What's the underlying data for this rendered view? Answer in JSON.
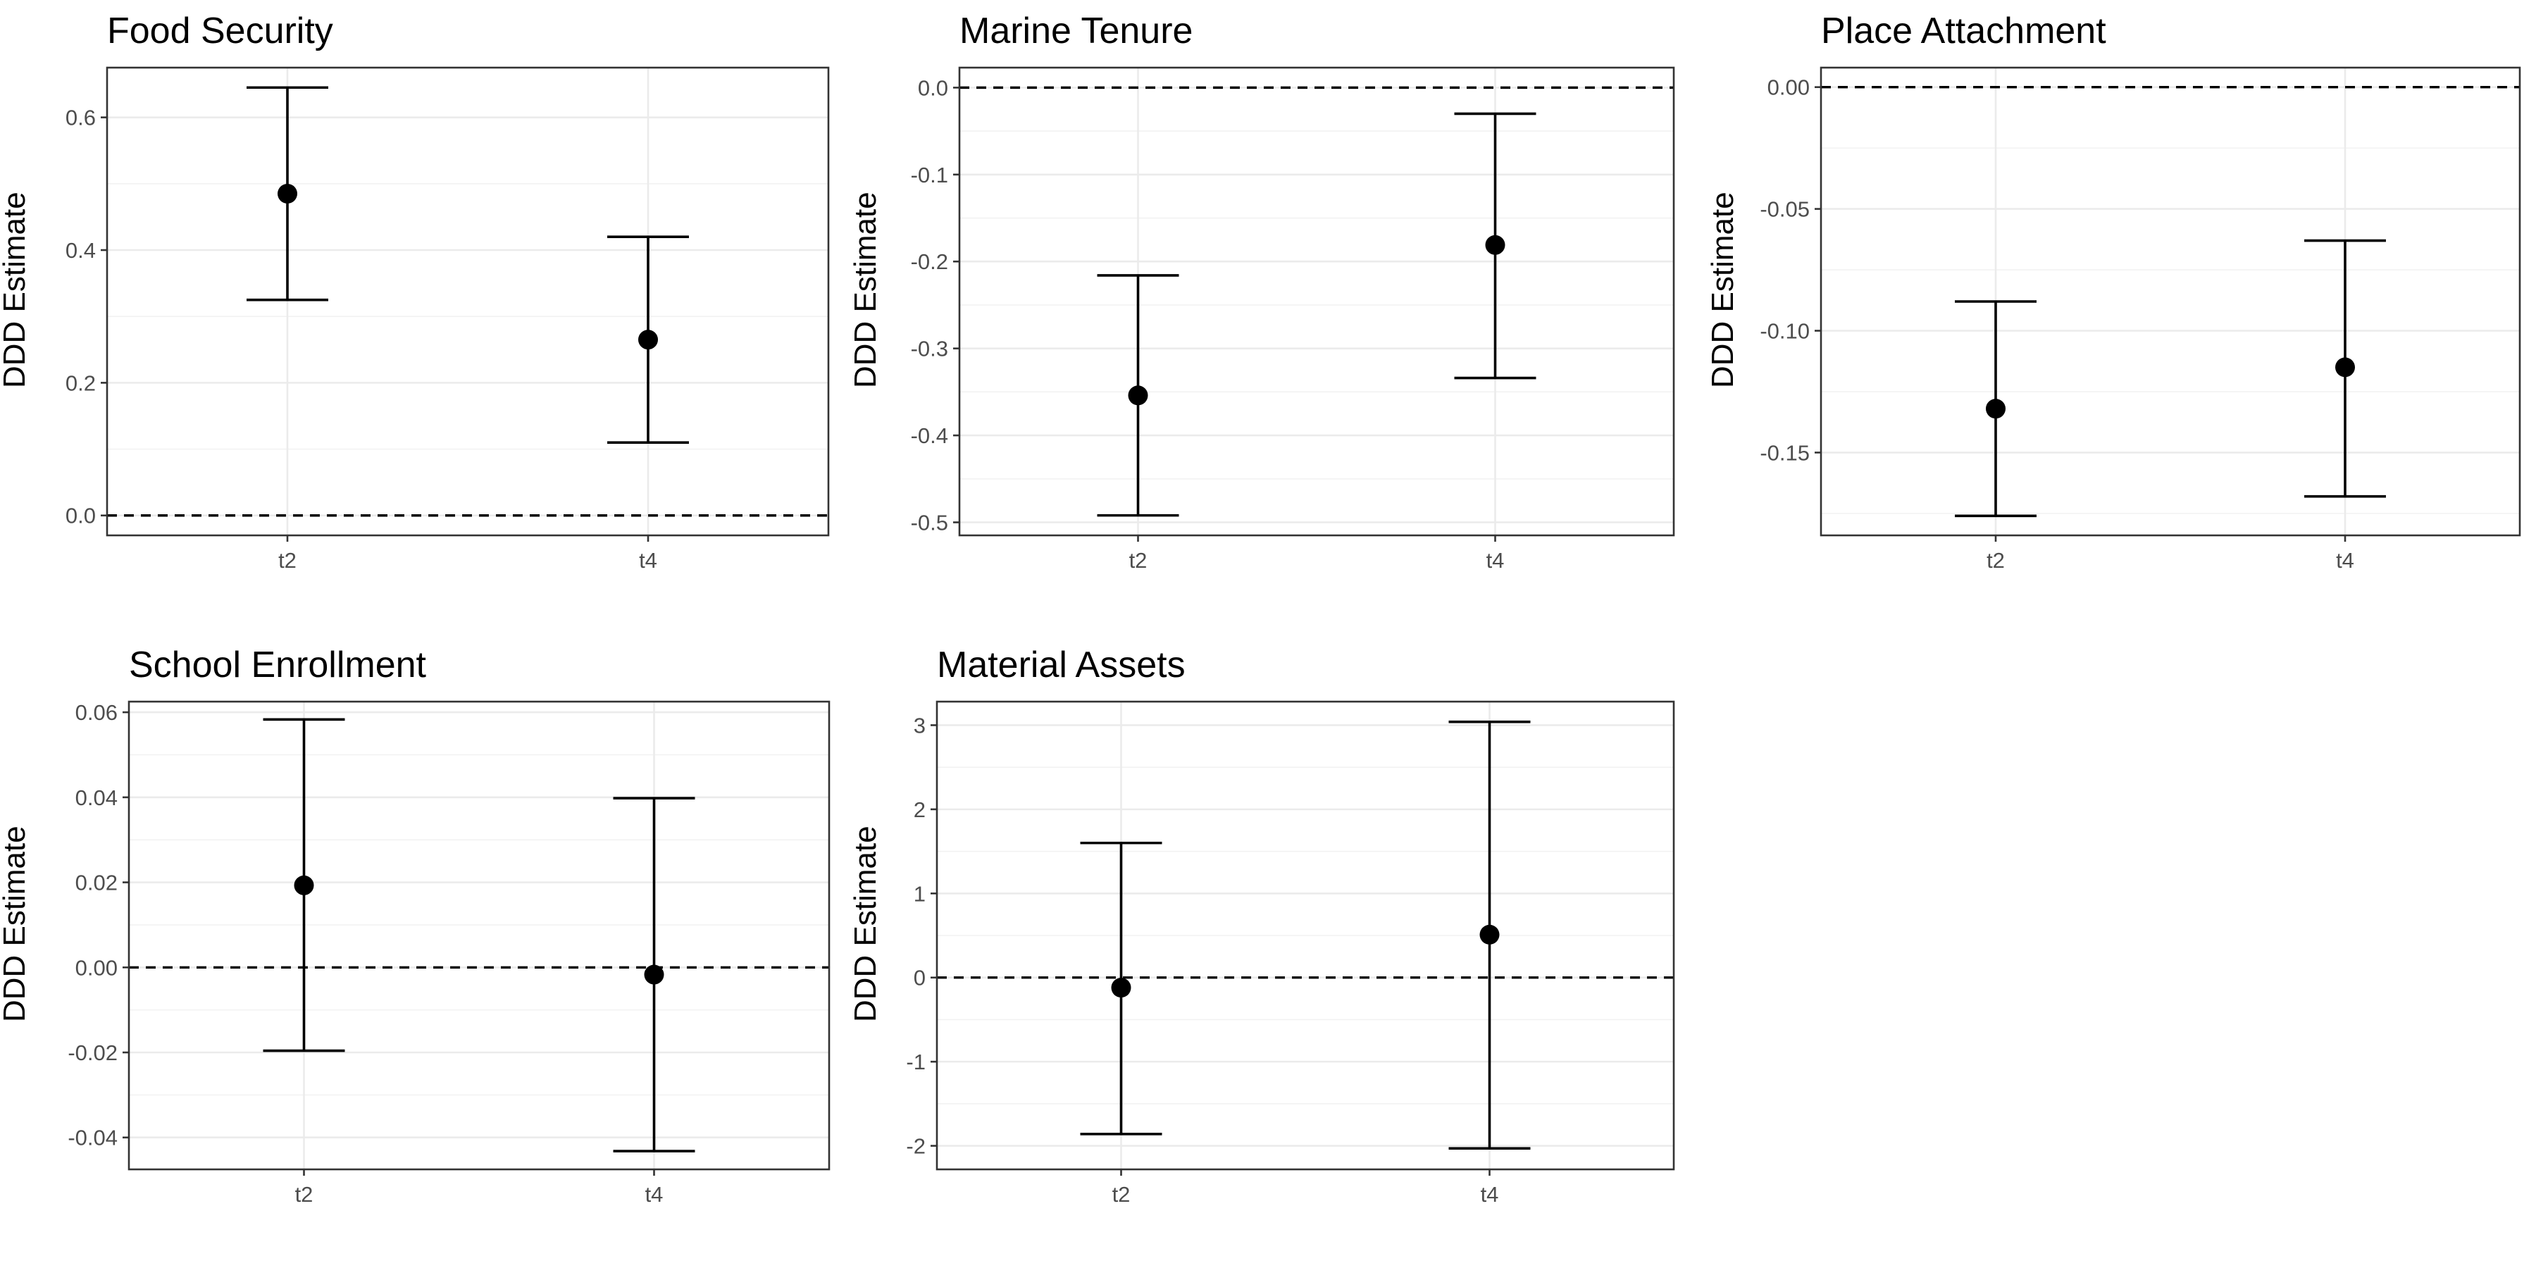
{
  "chart_data": [
    {
      "type": "scatter",
      "title": "Food Security",
      "ylabel": "DDD Estimate",
      "xlabel": "",
      "categories": [
        "t2",
        "t4"
      ],
      "estimates": [
        0.485,
        0.265
      ],
      "ci_lower": [
        0.325,
        0.11
      ],
      "ci_upper": [
        0.645,
        0.42
      ],
      "reference_line": 0,
      "ylim": [
        -0.03,
        0.675
      ],
      "yticks": [
        0.0,
        0.2,
        0.4,
        0.6
      ],
      "ytick_labels": [
        "0.0",
        "0.2",
        "0.4",
        "0.6"
      ],
      "grid": true
    },
    {
      "type": "scatter",
      "title": "Marine Tenure",
      "ylabel": "DDD Estimate",
      "xlabel": "",
      "categories": [
        "t2",
        "t4"
      ],
      "estimates": [
        -0.354,
        -0.181
      ],
      "ci_lower": [
        -0.492,
        -0.334
      ],
      "ci_upper": [
        -0.216,
        -0.03
      ],
      "reference_line": 0,
      "ylim": [
        -0.515,
        0.023
      ],
      "yticks": [
        -0.5,
        -0.4,
        -0.3,
        -0.2,
        -0.1,
        0.0
      ],
      "ytick_labels": [
        "-0.5",
        "-0.4",
        "-0.3",
        "-0.2",
        "-0.1",
        "0.0"
      ],
      "grid": true
    },
    {
      "type": "scatter",
      "title": "Place Attachment",
      "ylabel": "DDD Estimate",
      "xlabel": "",
      "categories": [
        "t2",
        "t4"
      ],
      "estimates": [
        -0.132,
        -0.115
      ],
      "ci_lower": [
        -0.176,
        -0.168
      ],
      "ci_upper": [
        -0.088,
        -0.063
      ],
      "reference_line": 0,
      "ylim": [
        -0.184,
        0.008
      ],
      "yticks": [
        -0.15,
        -0.1,
        -0.05,
        0.0
      ],
      "ytick_labels": [
        "-0.15",
        "-0.10",
        "-0.05",
        "0.00"
      ],
      "grid": true
    },
    {
      "type": "scatter",
      "title": "School Enrollment",
      "ylabel": "DDD Estimate",
      "xlabel": "",
      "categories": [
        "t2",
        "t4"
      ],
      "estimates": [
        0.0193,
        -0.0017
      ],
      "ci_lower": [
        -0.0196,
        -0.0432
      ],
      "ci_upper": [
        0.0583,
        0.0398
      ],
      "reference_line": 0,
      "ylim": [
        -0.0475,
        0.0625
      ],
      "yticks": [
        -0.04,
        -0.02,
        0.0,
        0.02,
        0.04,
        0.06
      ],
      "ytick_labels": [
        "-0.04",
        "-0.02",
        "0.00",
        "0.02",
        "0.04",
        "0.06"
      ],
      "grid": true
    },
    {
      "type": "scatter",
      "title": "Material Assets",
      "ylabel": "DDD Estimate",
      "xlabel": "",
      "categories": [
        "t2",
        "t4"
      ],
      "estimates": [
        -0.12,
        0.51
      ],
      "ci_lower": [
        -1.86,
        -2.03
      ],
      "ci_upper": [
        1.6,
        3.04
      ],
      "reference_line": 0,
      "ylim": [
        -2.28,
        3.28
      ],
      "yticks": [
        -2,
        -1,
        0,
        1,
        2,
        3
      ],
      "ytick_labels": [
        "-2",
        "-1",
        "0",
        "1",
        "2",
        "3"
      ],
      "grid": true
    }
  ]
}
